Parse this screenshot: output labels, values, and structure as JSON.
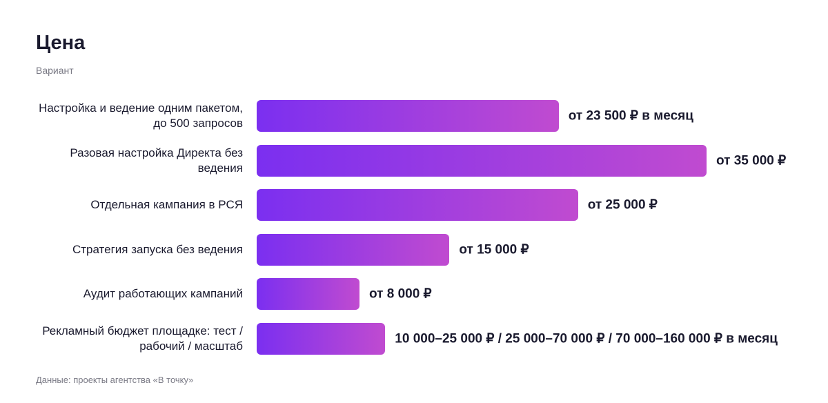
{
  "chart_data": {
    "type": "bar",
    "orientation": "horizontal",
    "title": "Цена",
    "y_label": "Вариант",
    "categories": [
      "Настройка и ведение одним пакетом, до 500 запросов",
      "Разовая настройка Директа без ведения",
      "Отдельная кампания в РСЯ",
      "Стратегия запуска без ведения",
      "Аудит работающих кампаний",
      "Рекламный бюджет площадке: тест / рабочий / масштаб"
    ],
    "values": [
      23500,
      35000,
      25000,
      15000,
      8000,
      10000
    ],
    "value_labels": [
      "от 23 500 ₽ в месяц",
      "от 35 000 ₽",
      "от 25 000 ₽",
      "от 15 000 ₽",
      "от 8 000 ₽",
      "10 000–25 000 ₽ / 25 000–70 000 ₽ / 70 000–160 000 ₽ в месяц"
    ],
    "color": [
      "#7b2ff0",
      "#c04bd0"
    ],
    "xlim": [
      0,
      35000
    ],
    "source": "Данные: проекты агентства «В точку»"
  }
}
